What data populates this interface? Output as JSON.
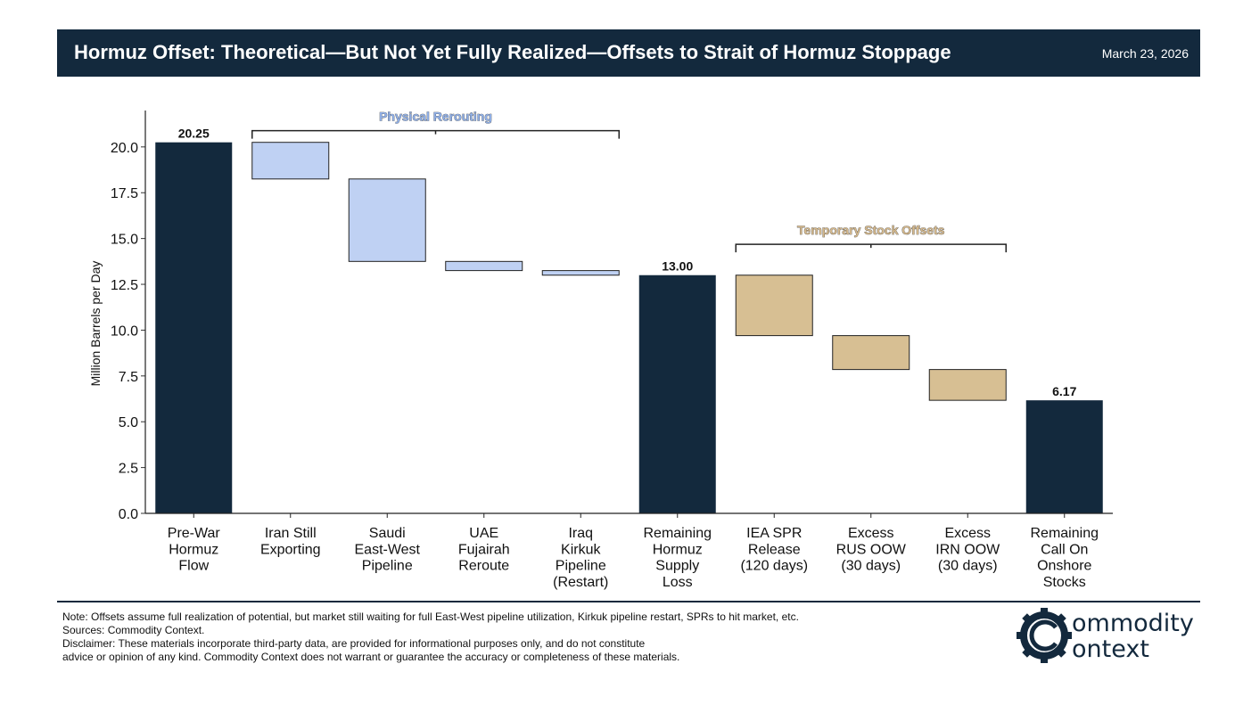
{
  "header": {
    "title": "Hormuz Offset: Theoretical—But Not Yet Fully Realized—Offsets to Strait of Hormuz Stoppage",
    "date": "March 23, 2026"
  },
  "colors": {
    "header_bg": "#13293d",
    "total_bar": "#13293d",
    "physical_bar": "#bfd1f3",
    "stock_bar": "#d7bf93",
    "physical_label": "#90b0e8",
    "stock_label": "#d4b88c"
  },
  "chart_data": {
    "type": "bar",
    "subtype": "waterfall",
    "ylabel": "Million Barrels per Day",
    "ylim": [
      0,
      21.5
    ],
    "yticks": [
      "0.0",
      "2.5",
      "5.0",
      "7.5",
      "10.0",
      "12.5",
      "15.0",
      "17.5",
      "20.0"
    ],
    "ytick_values": [
      0,
      2.5,
      5,
      7.5,
      10,
      12.5,
      15,
      17.5,
      20
    ],
    "categories": [
      [
        "Pre-War",
        "Hormuz",
        "Flow"
      ],
      [
        "Iran Still",
        "Exporting"
      ],
      [
        "Saudi",
        "East-West",
        "Pipeline"
      ],
      [
        "UAE",
        "Fujairah",
        "Reroute"
      ],
      [
        "Iraq",
        "Kirkuk",
        "Pipeline",
        "(Restart)"
      ],
      [
        "Remaining",
        "Hormuz",
        "Supply",
        "Loss"
      ],
      [
        "IEA SPR",
        "Release",
        "(120 days)"
      ],
      [
        "Excess",
        "RUS OOW",
        "(30 days)"
      ],
      [
        "Excess",
        "IRN OOW",
        "(30 days)"
      ],
      [
        "Remaining",
        "Call On",
        "Onshore",
        "Stocks"
      ]
    ],
    "bars": [
      {
        "kind": "total",
        "bottom": 0,
        "top": 20.25
      },
      {
        "kind": "physical",
        "bottom": 18.25,
        "top": 20.25
      },
      {
        "kind": "physical",
        "bottom": 13.75,
        "top": 18.25
      },
      {
        "kind": "physical",
        "bottom": 13.25,
        "top": 13.75
      },
      {
        "kind": "physical",
        "bottom": 13.0,
        "top": 13.25
      },
      {
        "kind": "total",
        "bottom": 0,
        "top": 13.0
      },
      {
        "kind": "stock",
        "bottom": 9.7,
        "top": 13.0
      },
      {
        "kind": "stock",
        "bottom": 7.85,
        "top": 9.7
      },
      {
        "kind": "stock",
        "bottom": 6.17,
        "top": 7.85
      },
      {
        "kind": "total",
        "bottom": 0,
        "top": 6.17
      }
    ],
    "value_labels": [
      {
        "index": 0,
        "text": "20.25"
      },
      {
        "index": 5,
        "text": "13.00"
      },
      {
        "index": 9,
        "text": "6.17"
      }
    ],
    "brackets": [
      {
        "label": "Physical Rerouting",
        "from": 1,
        "to": 4,
        "level": 20.3,
        "kind": "physical"
      },
      {
        "label": "Temporary Stock Offsets",
        "from": 6,
        "to": 8,
        "level": 14.1,
        "kind": "stock"
      }
    ]
  },
  "notes": {
    "line1": "Note: Offsets assume full realization of potential, but market still waiting for full East-West pipeline utilization, Kirkuk pipeline restart, SPRs to hit market, etc.",
    "line2": "Sources: Commodity Context.",
    "line3": "Disclaimer: These materials incorporate third-party data, are provided for informational purposes only, and do not constitute",
    "line4": "advice or opinion of any kind. Commodity Context does not warrant or guarantee the accuracy or completeness of these materials."
  },
  "logo": {
    "line1": "ommodity",
    "line2": "ontext"
  }
}
